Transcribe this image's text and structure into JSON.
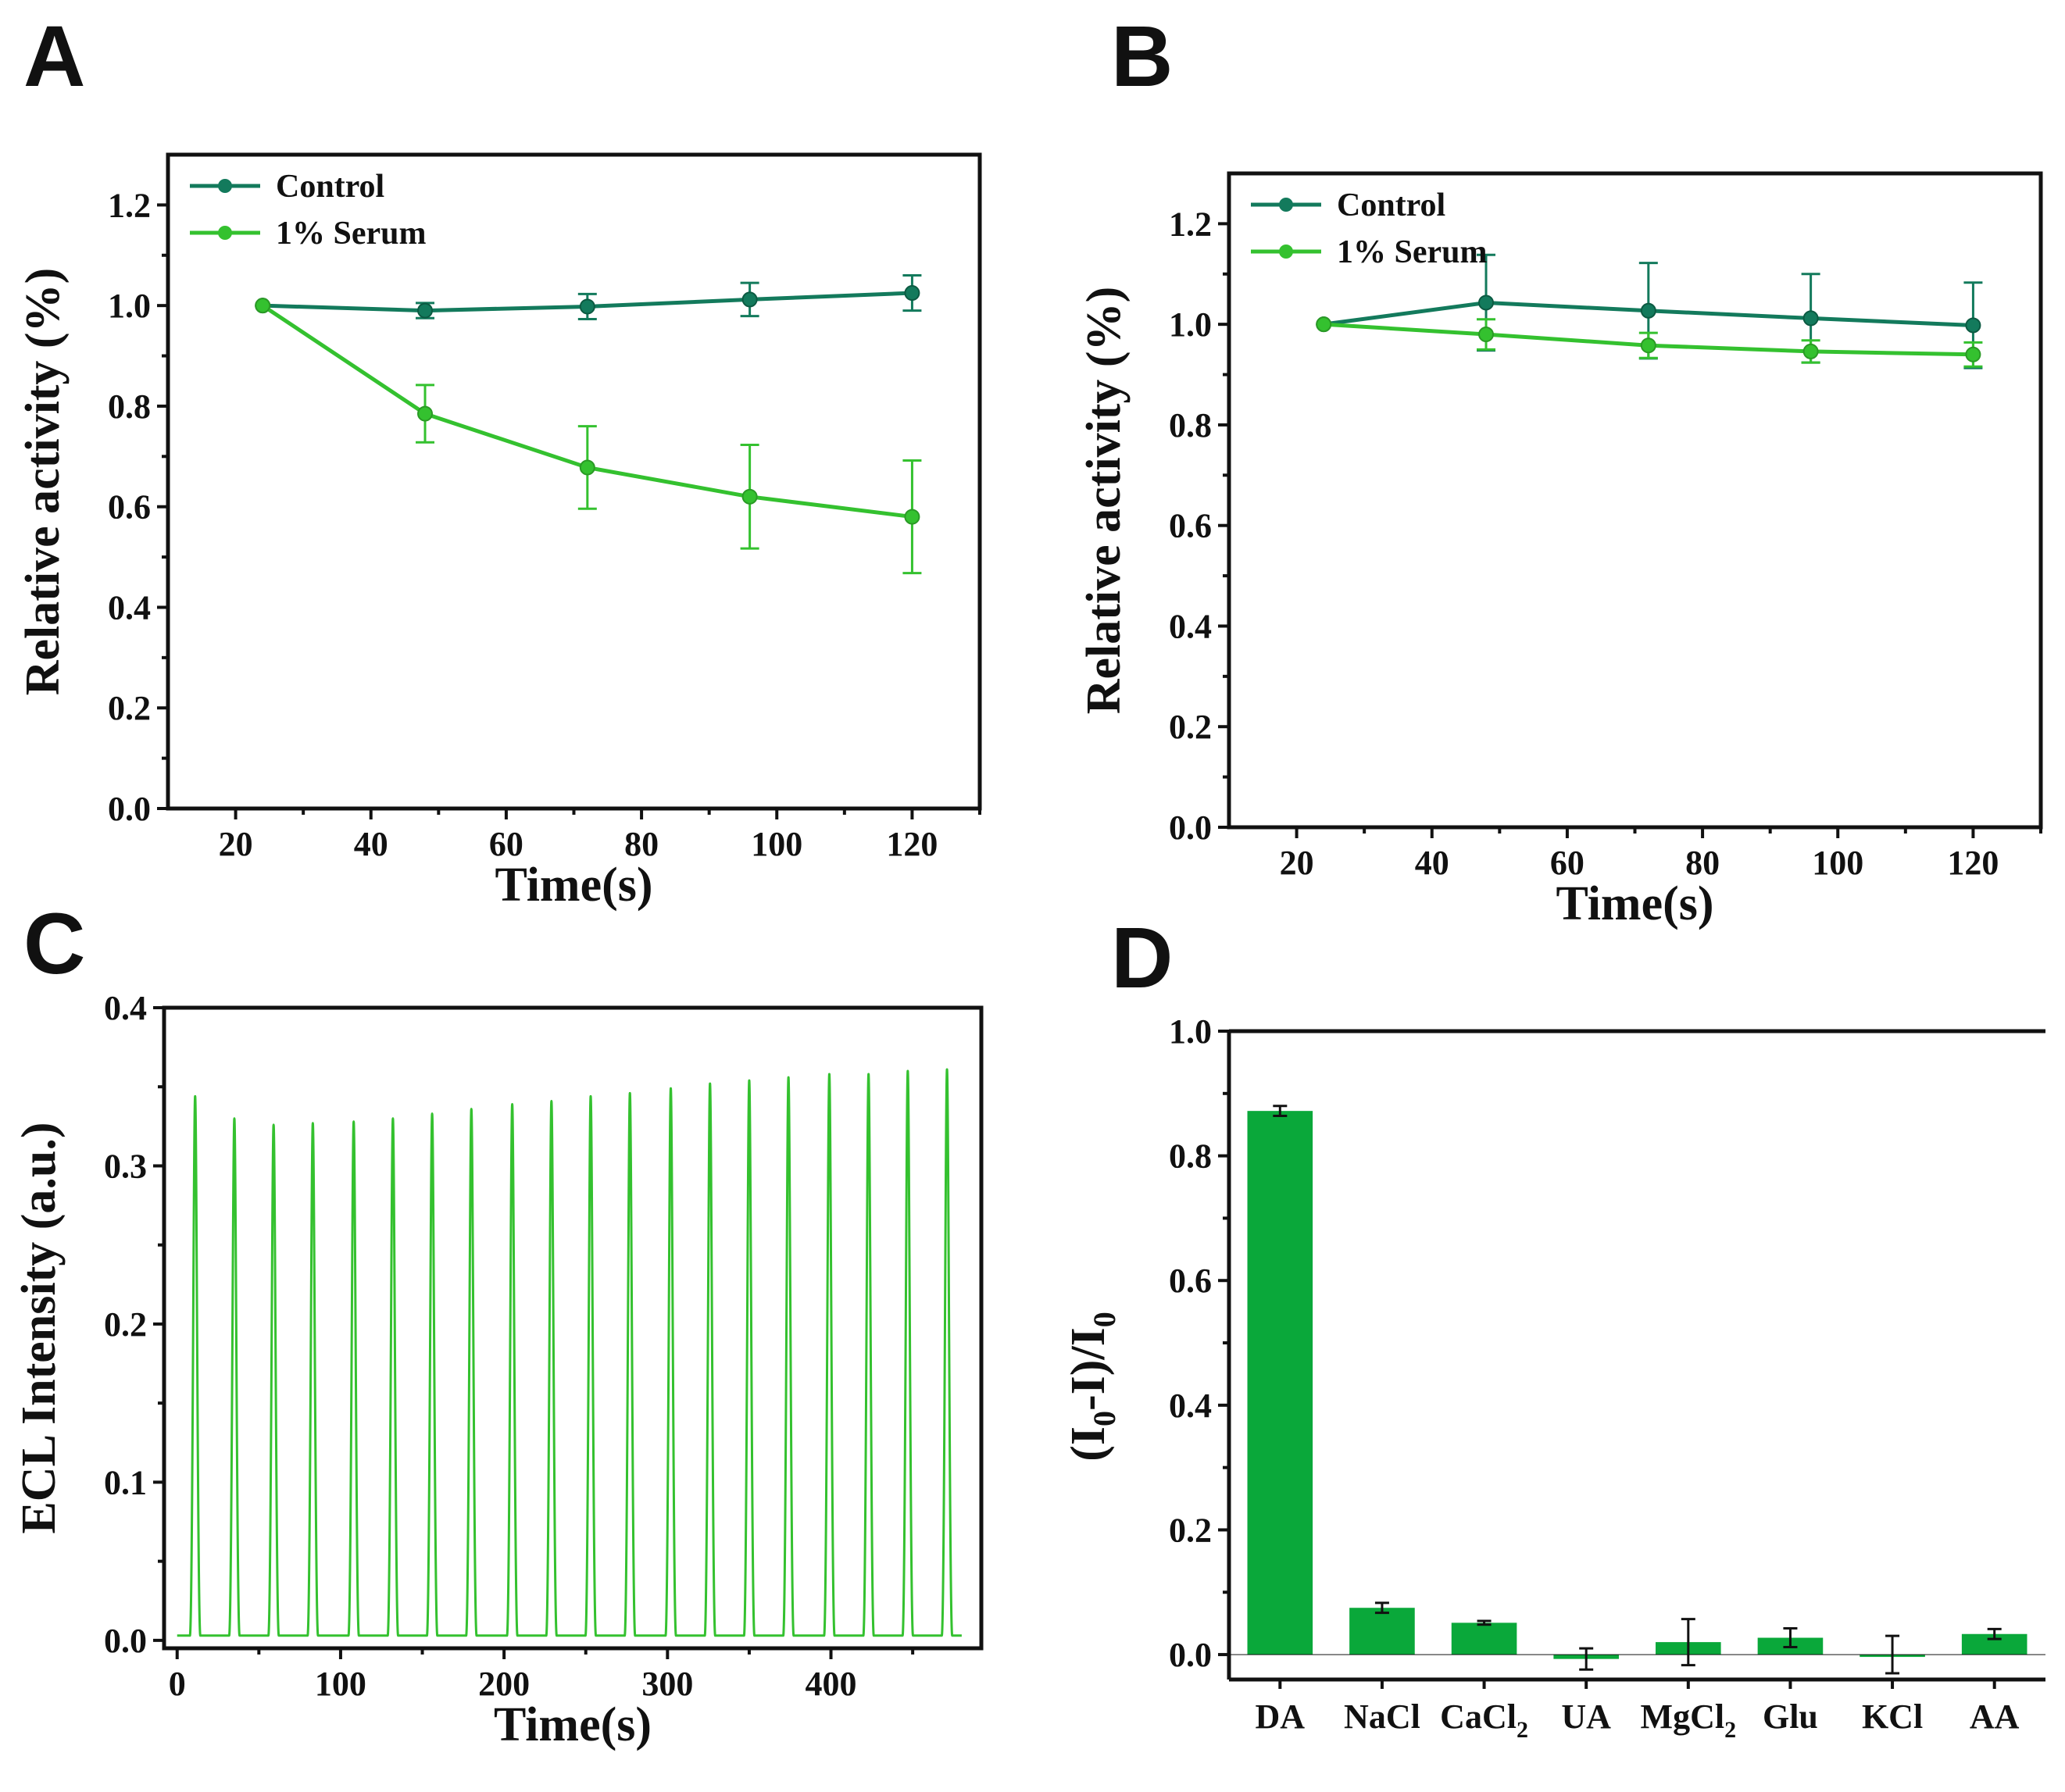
{
  "panels": {
    "A": {
      "letter": "A",
      "chart_data": {
        "type": "line",
        "title": "",
        "xlabel": "Time(s)",
        "ylabel": "Relative activity (%)",
        "xlim": [
          10,
          130
        ],
        "ylim": [
          0,
          1.3
        ],
        "xticks": [
          20,
          40,
          60,
          80,
          100,
          120
        ],
        "xtick_labels": [
          "20",
          "40",
          "60",
          "80",
          "100",
          "120"
        ],
        "yticks": [
          0,
          0.2,
          0.4,
          0.6,
          0.8,
          1.0,
          1.2
        ],
        "ytick_labels": [
          "0.0",
          "0.2",
          "0.4",
          "0.6",
          "0.8",
          "1.0",
          "1.2"
        ],
        "legend": "top-left",
        "series": [
          {
            "name": "Control",
            "color": "#137a5c",
            "x": [
              24,
              48,
              72,
              96,
              120
            ],
            "y": [
              1.0,
              0.99,
              0.998,
              1.012,
              1.025
            ],
            "err": [
              0,
              0.015,
              0.025,
              0.033,
              0.035
            ]
          },
          {
            "name": "1% Serum",
            "color": "#34c12f",
            "x": [
              24,
              48,
              72,
              96,
              120
            ],
            "y": [
              1.0,
              0.785,
              0.678,
              0.62,
              0.58
            ],
            "err": [
              0,
              0.057,
              0.082,
              0.103,
              0.112
            ]
          }
        ]
      }
    },
    "B": {
      "letter": "B",
      "chart_data": {
        "type": "line",
        "title": "",
        "xlabel": "Time(s)",
        "ylabel": "Relative activity (%)",
        "xlim": [
          10,
          130
        ],
        "ylim": [
          0,
          1.3
        ],
        "xticks": [
          20,
          40,
          60,
          80,
          100,
          120
        ],
        "xtick_labels": [
          "20",
          "40",
          "60",
          "80",
          "100",
          "120"
        ],
        "yticks": [
          0,
          0.2,
          0.4,
          0.6,
          0.8,
          1.0,
          1.2
        ],
        "ytick_labels": [
          "0.0",
          "0.2",
          "0.4",
          "0.6",
          "0.8",
          "1.0",
          "1.2"
        ],
        "legend": "top-left",
        "series": [
          {
            "name": "Control",
            "color": "#137a5c",
            "x": [
              24,
              48,
              72,
              96,
              120
            ],
            "y": [
              1.0,
              1.043,
              1.027,
              1.012,
              0.998
            ],
            "err": [
              0,
              0.095,
              0.095,
              0.088,
              0.085
            ]
          },
          {
            "name": "1% Serum",
            "color": "#34c12f",
            "x": [
              24,
              48,
              72,
              96,
              120
            ],
            "y": [
              1.0,
              0.98,
              0.958,
              0.946,
              0.94
            ],
            "err": [
              0,
              0.03,
              0.025,
              0.022,
              0.024
            ]
          }
        ]
      }
    },
    "C": {
      "letter": "C",
      "chart_data": {
        "type": "line",
        "title": "",
        "xlabel": "Time(s)",
        "ylabel": "ECL Intensity (a.u.)",
        "xlim": [
          -8,
          492
        ],
        "ylim": [
          -0.005,
          0.4
        ],
        "xticks": [
          0,
          100,
          200,
          300,
          400
        ],
        "xtick_labels": [
          "0",
          "100",
          "200",
          "300",
          "400"
        ],
        "yticks": [
          0,
          0.1,
          0.2,
          0.3,
          0.4
        ],
        "ytick_labels": [
          "0.0",
          "0.1",
          "0.2",
          "0.3",
          "0.4"
        ],
        "color": "#34c12f",
        "baseline": 0.003,
        "start_x": 0,
        "end_x": 480,
        "peak_x": [
          11,
          35,
          59,
          83,
          108,
          132,
          156,
          180,
          205,
          229,
          253,
          277,
          302,
          326,
          350,
          374,
          399,
          423,
          447,
          471
        ],
        "peak_y": [
          0.344,
          0.33,
          0.326,
          0.327,
          0.328,
          0.33,
          0.333,
          0.336,
          0.339,
          0.341,
          0.344,
          0.346,
          0.349,
          0.352,
          0.354,
          0.356,
          0.358,
          0.358,
          0.36,
          0.361
        ]
      }
    },
    "D": {
      "letter": "D",
      "chart_data": {
        "type": "bar",
        "title": "",
        "xlabel": "",
        "ylabel": "(I0-I)/I0",
        "ylim": [
          -0.04,
          1.0
        ],
        "yticks": [
          0,
          0.2,
          0.4,
          0.6,
          0.8,
          1.0
        ],
        "ytick_labels": [
          "0.0",
          "0.2",
          "0.4",
          "0.6",
          "0.8",
          "1.0"
        ],
        "color": "#0aa83a",
        "categories": [
          "DA",
          "NaCl",
          "CaCl",
          "UA",
          "MgCl",
          "Glu",
          "KCl",
          "AA"
        ],
        "category_subscripts": [
          "",
          "",
          "2",
          "",
          "2",
          "",
          "",
          ""
        ],
        "values": [
          0.872,
          0.075,
          0.051,
          -0.007,
          0.02,
          0.027,
          0.0,
          0.033
        ],
        "err": [
          0.008,
          0.008,
          0.003,
          0.017,
          0.037,
          0.015,
          0.03,
          0.008
        ]
      }
    }
  }
}
